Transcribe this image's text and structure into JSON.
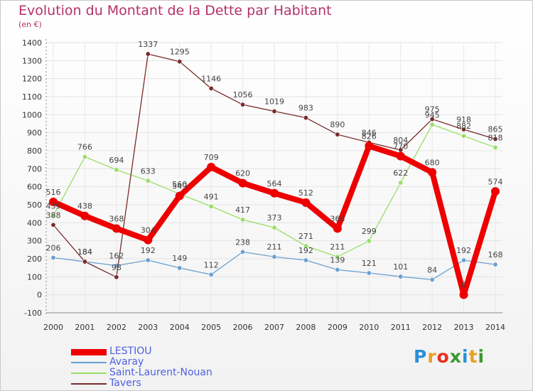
{
  "title": "Evolution du Montant de la Dette par Habitant",
  "subtitle": "(en €)",
  "logo_text": "Proxiti",
  "chart_data": {
    "type": "line",
    "title": "Evolution du Montant de la Dette par Habitant",
    "subtitle": "(en €)",
    "x": [
      "2000",
      "2001",
      "2002",
      "2003",
      "2004",
      "2005",
      "2006",
      "2007",
      "2008",
      "2009",
      "2010",
      "2011",
      "2012",
      "2013",
      "2014"
    ],
    "ylim": [
      -100,
      1400
    ],
    "yticks": [
      -100,
      0,
      100,
      200,
      300,
      400,
      500,
      600,
      700,
      800,
      900,
      1000,
      1100,
      1200,
      1300,
      1400
    ],
    "grid": true,
    "legend_position": "bottom-left",
    "series": [
      {
        "name": "LESTIOU",
        "color": "#ee0000",
        "values": [
          516,
          438,
          368,
          304,
          549,
          709,
          620,
          564,
          512,
          368,
          826,
          770,
          680,
          0,
          574
        ]
      },
      {
        "name": "Avaray",
        "color": "#6aa0d0",
        "values": [
          206,
          184,
          162,
          192,
          149,
          112,
          238,
          211,
          192,
          139,
          121,
          101,
          84,
          192,
          168
        ]
      },
      {
        "name": "Saint-Laurent-Nouan",
        "color": "#99dd66",
        "values": [
          439,
          766,
          694,
          633,
          560,
          491,
          417,
          373,
          271,
          211,
          299,
          622,
          945,
          882,
          818
        ]
      },
      {
        "name": "Tavers",
        "color": "#7a2a2a",
        "values": [
          388,
          184,
          98,
          1337,
          1295,
          1146,
          1056,
          1019,
          983,
          890,
          846,
          804,
          975,
          918,
          865
        ]
      }
    ]
  }
}
